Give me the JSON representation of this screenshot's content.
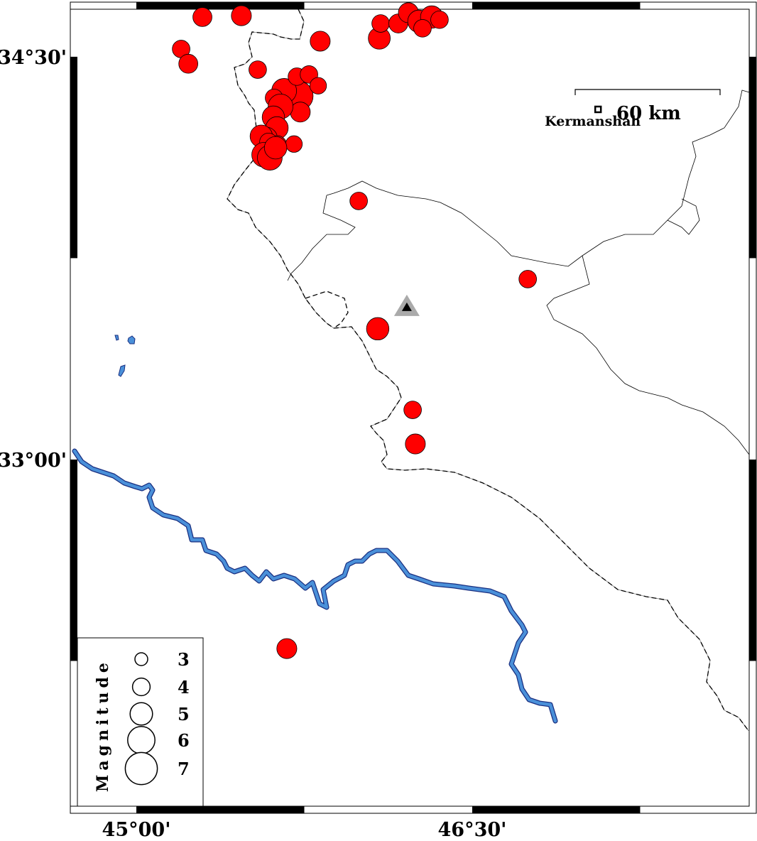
{
  "map": {
    "region": {
      "lon_min": 44.705,
      "lon_max": 47.737,
      "lat_min": 31.709,
      "lat_max": 34.677
    },
    "frame_ticks": {
      "lon": [
        {
          "value": 45.0,
          "label": "45°00'"
        },
        {
          "value": 46.5,
          "label": "46°30'"
        }
      ],
      "lat": [
        {
          "value": 34.5,
          "label": "34°30'"
        },
        {
          "value": 33.0,
          "label": "33°00'"
        }
      ]
    },
    "colors": {
      "event_fill": "#ff0000",
      "river": "#4a90d9",
      "river_outline": "#1a2f80",
      "station": "#000000",
      "station_halo": "#aaaaaa"
    }
  },
  "scale_bar": {
    "label": "60 km"
  },
  "city": {
    "name": "Kermanshah",
    "lon": 47.062,
    "lat": 34.304
  },
  "station": {
    "icon": "triangle",
    "lon": 46.208,
    "lat": 33.569
  },
  "legend": {
    "title": "Magnitude",
    "items": [
      {
        "mag": 3,
        "label": "3"
      },
      {
        "mag": 4,
        "label": "4"
      },
      {
        "mag": 5,
        "label": "5"
      },
      {
        "mag": 6,
        "label": "6"
      },
      {
        "mag": 7,
        "label": "7"
      }
    ]
  },
  "events": [
    {
      "lon": 45.295,
      "lat": 34.648,
      "mag": 4.3
    },
    {
      "lon": 45.469,
      "lat": 34.653,
      "mag": 4.5
    },
    {
      "lon": 45.2,
      "lat": 34.529,
      "mag": 4.0
    },
    {
      "lon": 45.232,
      "lat": 34.474,
      "mag": 4.3
    },
    {
      "lon": 45.542,
      "lat": 34.452,
      "mag": 4.0
    },
    {
      "lon": 45.821,
      "lat": 34.558,
      "mag": 4.5
    },
    {
      "lon": 46.085,
      "lat": 34.569,
      "mag": 4.9
    },
    {
      "lon": 46.091,
      "lat": 34.624,
      "mag": 4.0
    },
    {
      "lon": 46.17,
      "lat": 34.624,
      "mag": 4.3
    },
    {
      "lon": 46.215,
      "lat": 34.664,
      "mag": 4.5
    },
    {
      "lon": 46.262,
      "lat": 34.632,
      "mag": 5.0
    },
    {
      "lon": 46.319,
      "lat": 34.648,
      "mag": 5.0
    },
    {
      "lon": 46.354,
      "lat": 34.638,
      "mag": 4.0
    },
    {
      "lon": 46.278,
      "lat": 34.606,
      "mag": 4.0
    },
    {
      "lon": 45.723,
      "lat": 34.354,
      "mag": 6.5
    },
    {
      "lon": 45.66,
      "lat": 34.373,
      "mag": 5.5
    },
    {
      "lon": 45.717,
      "lat": 34.426,
      "mag": 4.0
    },
    {
      "lon": 45.771,
      "lat": 34.434,
      "mag": 4.0
    },
    {
      "lon": 45.812,
      "lat": 34.392,
      "mag": 3.8
    },
    {
      "lon": 45.615,
      "lat": 34.347,
      "mag": 4.0
    },
    {
      "lon": 45.732,
      "lat": 34.294,
      "mag": 4.5
    },
    {
      "lon": 45.644,
      "lat": 34.315,
      "mag": 5.5
    },
    {
      "lon": 45.612,
      "lat": 34.275,
      "mag": 5.0
    },
    {
      "lon": 45.628,
      "lat": 34.235,
      "mag": 5.0
    },
    {
      "lon": 45.58,
      "lat": 34.196,
      "mag": 5.0
    },
    {
      "lon": 45.558,
      "lat": 34.204,
      "mag": 5.0
    },
    {
      "lon": 45.628,
      "lat": 34.169,
      "mag": 4.5
    },
    {
      "lon": 45.59,
      "lat": 34.183,
      "mag": 4.0
    },
    {
      "lon": 45.571,
      "lat": 34.135,
      "mag": 5.5
    },
    {
      "lon": 45.596,
      "lat": 34.124,
      "mag": 5.5
    },
    {
      "lon": 45.704,
      "lat": 34.175,
      "mag": 3.8
    },
    {
      "lon": 45.622,
      "lat": 34.161,
      "mag": 5.0
    },
    {
      "lon": 45.993,
      "lat": 33.963,
      "mag": 4.0
    },
    {
      "lon": 46.748,
      "lat": 33.672,
      "mag": 4.0
    },
    {
      "lon": 46.078,
      "lat": 33.487,
      "mag": 5.0
    },
    {
      "lon": 46.234,
      "lat": 33.185,
      "mag": 4.0
    },
    {
      "lon": 46.246,
      "lat": 33.058,
      "mag": 4.5
    },
    {
      "lon": 45.672,
      "lat": 32.296,
      "mag": 4.5
    }
  ]
}
